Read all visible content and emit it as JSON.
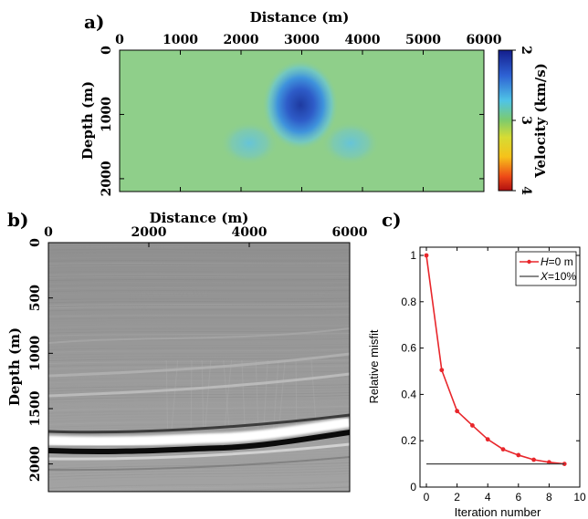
{
  "panels": {
    "a": {
      "label": "a)",
      "title": "Distance (m)",
      "ylabel": "Depth (m)",
      "x_ticks": [
        "0",
        "1000",
        "2000",
        "3000",
        "4000",
        "5000",
        "6000"
      ],
      "y_ticks": [
        "0",
        "1000",
        "2000"
      ],
      "colorbar_label": "Velocity (km/s)",
      "colorbar_ticks": [
        "2",
        "3",
        "4"
      ]
    },
    "b": {
      "label": "b)",
      "title": "Distance (m)",
      "ylabel": "Depth (m)",
      "x_ticks": [
        "0",
        "2000",
        "4000",
        "6000"
      ],
      "y_ticks": [
        "0",
        "500",
        "1000",
        "1500",
        "2000"
      ]
    },
    "c": {
      "label": "c)",
      "xlabel": "Iteration number",
      "ylabel": "Relative misfit",
      "x_ticks": [
        "0",
        "2",
        "4",
        "6",
        "8",
        "10"
      ],
      "y_ticks": [
        "0",
        "0.2",
        "0.4",
        "0.6",
        "0.8",
        "1"
      ],
      "legend": [
        {
          "symbol": "H",
          "text": "=0 m"
        },
        {
          "symbol": "X",
          "text": "=10%"
        }
      ]
    }
  },
  "chart_data": [
    {
      "type": "heatmap",
      "panel": "a",
      "title": "Distance (m)",
      "xlabel": "Distance (m)",
      "ylabel": "Depth (m)",
      "xlim": [
        0,
        6000
      ],
      "ylim": [
        0,
        2200
      ],
      "y_reversed": true,
      "colorbar": {
        "label": "Velocity (km/s)",
        "range": [
          2,
          4
        ],
        "reversed": true
      },
      "background_velocity": 2.75,
      "anomalies": [
        {
          "x": 3000,
          "y": 800,
          "velocity": 2.15
        },
        {
          "x": 2150,
          "y": 1320,
          "velocity": 2.55
        },
        {
          "x": 3850,
          "y": 1320,
          "velocity": 2.55
        }
      ]
    },
    {
      "type": "heatmap",
      "panel": "b",
      "title": "Distance (m)",
      "xlabel": "Distance (m)",
      "ylabel": "Depth (m)",
      "xlim": [
        0,
        6000
      ],
      "ylim": [
        0,
        2250
      ],
      "y_reversed": true,
      "colormap": "gray",
      "reflector_depth": [
        {
          "x": 0,
          "y": 1800
        },
        {
          "x": 1500,
          "y": 1810
        },
        {
          "x": 3000,
          "y": 1780
        },
        {
          "x": 4500,
          "y": 1720
        },
        {
          "x": 6000,
          "y": 1650
        }
      ]
    },
    {
      "type": "line",
      "panel": "c",
      "xlabel": "Iteration number",
      "ylabel": "Relative misfit",
      "xlim": [
        0,
        10
      ],
      "ylim": [
        0,
        1.05
      ],
      "series": [
        {
          "name": "H=0 m",
          "color": "#e8262b",
          "x": [
            0,
            1,
            2,
            3,
            4,
            5,
            6,
            7,
            8,
            9
          ],
          "values": [
            1.0,
            0.505,
            0.328,
            0.266,
            0.206,
            0.163,
            0.138,
            0.118,
            0.107,
            0.1
          ]
        },
        {
          "name": "X=10%",
          "color": "#404040",
          "x": [
            0,
            9
          ],
          "values": [
            0.1,
            0.1
          ]
        }
      ]
    }
  ]
}
